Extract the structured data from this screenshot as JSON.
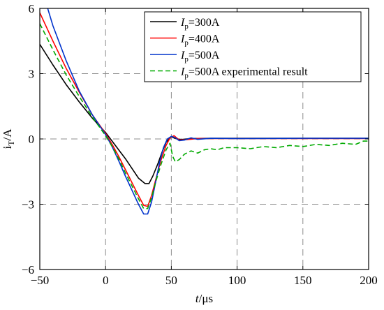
{
  "chart_data": {
    "type": "line",
    "xlabel": {
      "var": "t",
      "unit": "/μs"
    },
    "ylabel": {
      "base": "i",
      "sub": "T",
      "unit": "/A"
    },
    "xlim": [
      -50,
      200
    ],
    "ylim": [
      -6,
      6
    ],
    "xticks": [
      -50,
      0,
      50,
      100,
      150,
      200
    ],
    "yticks": [
      -6,
      -3,
      0,
      3,
      6
    ],
    "xtick_labels": [
      "−50",
      "0",
      "50",
      "100",
      "150",
      "200"
    ],
    "ytick_labels": [
      "−6",
      "−3",
      "0",
      "3",
      "6"
    ],
    "grid": true,
    "legend_position": "top-right",
    "series": [
      {
        "name": "Ip=300A",
        "label": {
          "var": "I",
          "sub": "p",
          "rest": "=300A"
        },
        "color": "#000000",
        "dash": "solid",
        "points": [
          [
            -50,
            4.35
          ],
          [
            -40,
            3.4
          ],
          [
            -30,
            2.5
          ],
          [
            -20,
            1.7
          ],
          [
            -10,
            0.95
          ],
          [
            0,
            0.3
          ],
          [
            5,
            -0.1
          ],
          [
            10,
            -0.5
          ],
          [
            15,
            -0.9
          ],
          [
            20,
            -1.35
          ],
          [
            25,
            -1.8
          ],
          [
            30,
            -2.05
          ],
          [
            33,
            -2.05
          ],
          [
            36,
            -1.7
          ],
          [
            40,
            -1.1
          ],
          [
            43,
            -0.6
          ],
          [
            46,
            -0.15
          ],
          [
            50,
            0.1
          ],
          [
            53,
            0.02
          ],
          [
            57,
            -0.03
          ],
          [
            65,
            0.02
          ],
          [
            80,
            0.03
          ],
          [
            100,
            0.03
          ],
          [
            150,
            0.03
          ],
          [
            200,
            0.03
          ]
        ]
      },
      {
        "name": "Ip=400A",
        "label": {
          "var": "I",
          "sub": "p",
          "rest": "=400A"
        },
        "color": "#ff0000",
        "dash": "solid",
        "points": [
          [
            -50,
            5.8
          ],
          [
            -40,
            4.5
          ],
          [
            -30,
            3.25
          ],
          [
            -20,
            2.15
          ],
          [
            -10,
            1.1
          ],
          [
            0,
            0.25
          ],
          [
            5,
            -0.25
          ],
          [
            10,
            -0.8
          ],
          [
            15,
            -1.4
          ],
          [
            20,
            -2.0
          ],
          [
            25,
            -2.6
          ],
          [
            29,
            -3.05
          ],
          [
            32,
            -3.1
          ],
          [
            35,
            -2.6
          ],
          [
            38,
            -1.9
          ],
          [
            42,
            -1.0
          ],
          [
            46,
            -0.3
          ],
          [
            49,
            0.05
          ],
          [
            52,
            0.15
          ],
          [
            56,
            -0.05
          ],
          [
            62,
            -0.03
          ],
          [
            70,
            0.02
          ],
          [
            90,
            0.02
          ],
          [
            120,
            0.02
          ],
          [
            200,
            0.02
          ]
        ]
      },
      {
        "name": "Ip=500A",
        "label": {
          "var": "I",
          "sub": "p",
          "rest": "=500A"
        },
        "color": "#0033cc",
        "dash": "solid",
        "points": [
          [
            -44,
            6.0
          ],
          [
            -40,
            5.2
          ],
          [
            -30,
            3.6
          ],
          [
            -20,
            2.2
          ],
          [
            -10,
            1.1
          ],
          [
            0,
            0.2
          ],
          [
            5,
            -0.35
          ],
          [
            10,
            -1.0
          ],
          [
            15,
            -1.7
          ],
          [
            20,
            -2.35
          ],
          [
            25,
            -3.0
          ],
          [
            29,
            -3.45
          ],
          [
            32,
            -3.45
          ],
          [
            35,
            -2.9
          ],
          [
            38,
            -2.0
          ],
          [
            41,
            -1.1
          ],
          [
            44,
            -0.4
          ],
          [
            47,
            0.0
          ],
          [
            50,
            0.12
          ],
          [
            53,
            0.05
          ],
          [
            56,
            -0.08
          ],
          [
            60,
            -0.05
          ],
          [
            65,
            0.05
          ],
          [
            70,
            -0.02
          ],
          [
            80,
            0.03
          ],
          [
            100,
            0.02
          ],
          [
            150,
            0.03
          ],
          [
            200,
            0.03
          ]
        ]
      },
      {
        "name": "Ip=500A experimental result",
        "label": {
          "var": "I",
          "sub": "p",
          "rest": "=500A experimental result"
        },
        "color": "#00aa00",
        "dash": "dashed",
        "points": [
          [
            -50,
            5.3
          ],
          [
            -40,
            4.1
          ],
          [
            -30,
            2.95
          ],
          [
            -20,
            1.95
          ],
          [
            -10,
            1.0
          ],
          [
            0,
            0.15
          ],
          [
            5,
            -0.35
          ],
          [
            10,
            -0.9
          ],
          [
            15,
            -1.55
          ],
          [
            20,
            -2.15
          ],
          [
            25,
            -2.75
          ],
          [
            29,
            -3.2
          ],
          [
            32,
            -3.2
          ],
          [
            35,
            -2.7
          ],
          [
            38,
            -2.0
          ],
          [
            42,
            -1.2
          ],
          [
            46,
            -0.5
          ],
          [
            49,
            -0.2
          ],
          [
            51,
            -0.8
          ],
          [
            53,
            -1.05
          ],
          [
            56,
            -0.95
          ],
          [
            60,
            -0.7
          ],
          [
            65,
            -0.55
          ],
          [
            70,
            -0.65
          ],
          [
            75,
            -0.5
          ],
          [
            80,
            -0.45
          ],
          [
            85,
            -0.5
          ],
          [
            90,
            -0.4
          ],
          [
            100,
            -0.4
          ],
          [
            110,
            -0.45
          ],
          [
            120,
            -0.35
          ],
          [
            130,
            -0.4
          ],
          [
            140,
            -0.3
          ],
          [
            150,
            -0.35
          ],
          [
            160,
            -0.25
          ],
          [
            170,
            -0.3
          ],
          [
            180,
            -0.2
          ],
          [
            190,
            -0.25
          ],
          [
            196,
            -0.1
          ],
          [
            200,
            -0.1
          ]
        ]
      }
    ]
  }
}
